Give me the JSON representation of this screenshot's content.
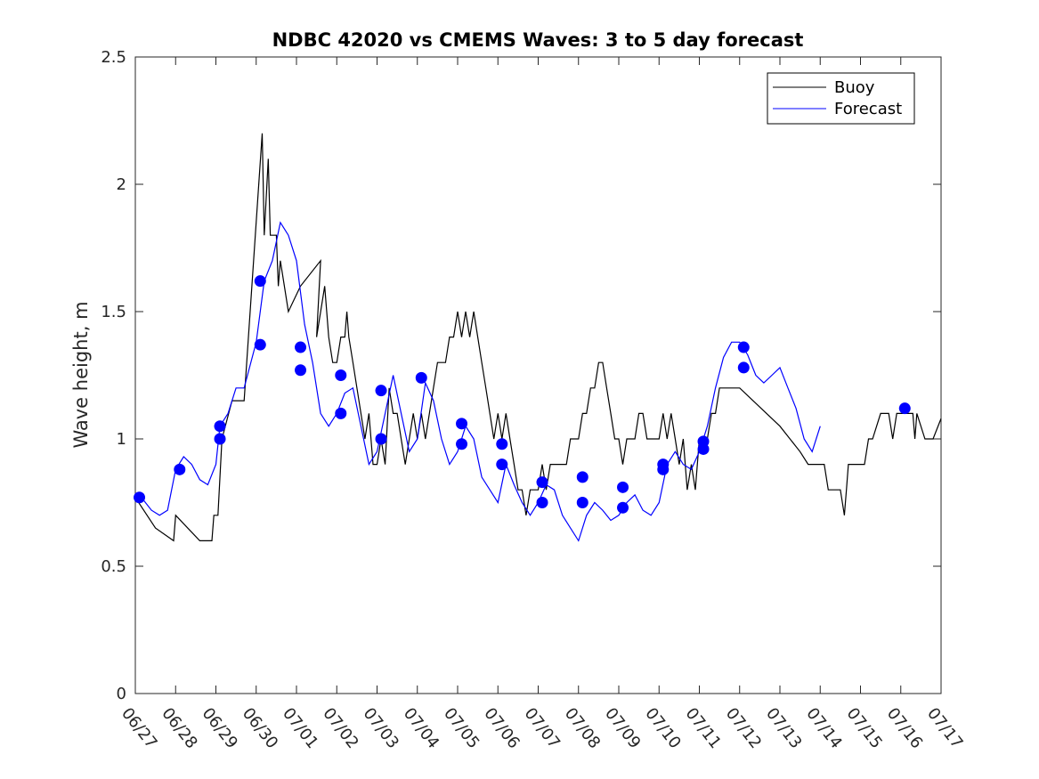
{
  "chart_data": {
    "type": "line",
    "title": "NDBC 42020 vs CMEMS Waves: 3 to 5 day forecast",
    "ylabel": "Wave height, m",
    "xlabel": "",
    "xlim": [
      0,
      20
    ],
    "ylim": [
      0,
      2.5
    ],
    "grid": false,
    "legend_position": "top-right",
    "yticks": [
      0,
      0.5,
      1,
      1.5,
      2,
      2.5
    ],
    "ytick_labels": [
      "0",
      "0.5",
      "1",
      "1.5",
      "2",
      "2.5"
    ],
    "xticks": [
      0,
      1,
      2,
      3,
      4,
      5,
      6,
      7,
      8,
      9,
      10,
      11,
      12,
      13,
      14,
      15,
      16,
      17,
      18,
      19,
      20
    ],
    "xtick_labels": [
      "06/27",
      "06/28",
      "06/29",
      "06/30",
      "07/01",
      "07/02",
      "07/03",
      "07/04",
      "07/05",
      "07/06",
      "07/07",
      "07/08",
      "07/09",
      "07/10",
      "07/11",
      "07/12",
      "07/13",
      "07/14",
      "07/15",
      "07/16",
      "07/17"
    ],
    "colors": {
      "buoy": "#000000",
      "forecast": "#0000ff"
    },
    "legend": [
      {
        "label": "Buoy",
        "color": "#000000"
      },
      {
        "label": "Forecast",
        "color": "#0000ff"
      }
    ],
    "series": [
      {
        "name": "Buoy",
        "color": "#000000",
        "points": [
          [
            0.0,
            0.77
          ],
          [
            0.5,
            0.65
          ],
          [
            0.95,
            0.6
          ],
          [
            1.0,
            0.7
          ],
          [
            1.6,
            0.6
          ],
          [
            1.9,
            0.6
          ],
          [
            1.95,
            0.7
          ],
          [
            2.05,
            0.7
          ],
          [
            2.15,
            1.0
          ],
          [
            2.4,
            1.15
          ],
          [
            2.7,
            1.15
          ],
          [
            3.15,
            2.2
          ],
          [
            3.2,
            1.8
          ],
          [
            3.3,
            2.1
          ],
          [
            3.35,
            1.8
          ],
          [
            3.5,
            1.8
          ],
          [
            3.55,
            1.6
          ],
          [
            3.6,
            1.7
          ],
          [
            3.7,
            1.6
          ],
          [
            3.8,
            1.5
          ],
          [
            4.1,
            1.6
          ],
          [
            4.6,
            1.7
          ],
          [
            4.5,
            1.4
          ],
          [
            4.7,
            1.6
          ],
          [
            4.8,
            1.4
          ],
          [
            4.9,
            1.3
          ],
          [
            5.0,
            1.3
          ],
          [
            5.1,
            1.4
          ],
          [
            5.2,
            1.4
          ],
          [
            5.25,
            1.5
          ],
          [
            5.3,
            1.4
          ],
          [
            5.4,
            1.3
          ],
          [
            5.5,
            1.2
          ],
          [
            5.6,
            1.1
          ],
          [
            5.7,
            1.0
          ],
          [
            5.8,
            1.1
          ],
          [
            5.9,
            0.9
          ],
          [
            6.0,
            0.9
          ],
          [
            6.1,
            1.0
          ],
          [
            6.2,
            0.9
          ],
          [
            6.3,
            1.2
          ],
          [
            6.4,
            1.1
          ],
          [
            6.5,
            1.1
          ],
          [
            6.6,
            1.0
          ],
          [
            6.7,
            0.9
          ],
          [
            6.8,
            1.0
          ],
          [
            6.9,
            1.1
          ],
          [
            7.0,
            1.0
          ],
          [
            7.1,
            1.1
          ],
          [
            7.2,
            1.0
          ],
          [
            7.3,
            1.1
          ],
          [
            7.5,
            1.3
          ],
          [
            7.7,
            1.3
          ],
          [
            7.8,
            1.4
          ],
          [
            7.9,
            1.4
          ],
          [
            8.0,
            1.5
          ],
          [
            8.1,
            1.4
          ],
          [
            8.2,
            1.5
          ],
          [
            8.3,
            1.4
          ],
          [
            8.4,
            1.5
          ],
          [
            8.5,
            1.4
          ],
          [
            8.6,
            1.3
          ],
          [
            8.7,
            1.2
          ],
          [
            8.8,
            1.1
          ],
          [
            8.9,
            1.0
          ],
          [
            9.0,
            1.1
          ],
          [
            9.1,
            1.0
          ],
          [
            9.2,
            1.1
          ],
          [
            9.3,
            1.0
          ],
          [
            9.4,
            0.9
          ],
          [
            9.5,
            0.8
          ],
          [
            9.6,
            0.8
          ],
          [
            9.7,
            0.7
          ],
          [
            9.8,
            0.8
          ],
          [
            9.9,
            0.8
          ],
          [
            10.0,
            0.8
          ],
          [
            10.1,
            0.9
          ],
          [
            10.2,
            0.8
          ],
          [
            10.3,
            0.9
          ],
          [
            10.5,
            0.9
          ],
          [
            10.7,
            0.9
          ],
          [
            10.8,
            1.0
          ],
          [
            10.9,
            1.0
          ],
          [
            11.0,
            1.0
          ],
          [
            11.1,
            1.1
          ],
          [
            11.2,
            1.1
          ],
          [
            11.3,
            1.2
          ],
          [
            11.4,
            1.2
          ],
          [
            11.5,
            1.3
          ],
          [
            11.6,
            1.3
          ],
          [
            11.7,
            1.2
          ],
          [
            11.8,
            1.1
          ],
          [
            11.9,
            1.0
          ],
          [
            12.0,
            1.0
          ],
          [
            12.1,
            0.9
          ],
          [
            12.2,
            1.0
          ],
          [
            12.3,
            1.0
          ],
          [
            12.4,
            1.0
          ],
          [
            12.5,
            1.1
          ],
          [
            12.6,
            1.1
          ],
          [
            12.7,
            1.0
          ],
          [
            12.8,
            1.0
          ],
          [
            12.9,
            1.0
          ],
          [
            13.0,
            1.0
          ],
          [
            13.1,
            1.1
          ],
          [
            13.2,
            1.0
          ],
          [
            13.3,
            1.1
          ],
          [
            13.4,
            1.0
          ],
          [
            13.5,
            0.9
          ],
          [
            13.6,
            1.0
          ],
          [
            13.7,
            0.8
          ],
          [
            13.8,
            0.9
          ],
          [
            13.9,
            0.8
          ],
          [
            14.0,
            1.0
          ],
          [
            14.1,
            1.0
          ],
          [
            14.2,
            1.0
          ],
          [
            14.3,
            1.1
          ],
          [
            14.4,
            1.1
          ],
          [
            14.5,
            1.2
          ],
          [
            15.0,
            1.2
          ],
          [
            16.0,
            1.05
          ],
          [
            16.5,
            0.95
          ],
          [
            16.7,
            0.9
          ],
          [
            17.1,
            0.9
          ],
          [
            17.2,
            0.8
          ],
          [
            17.5,
            0.8
          ],
          [
            17.6,
            0.7
          ],
          [
            17.65,
            0.8
          ],
          [
            17.7,
            0.9
          ],
          [
            18.1,
            0.9
          ],
          [
            18.2,
            1.0
          ],
          [
            18.3,
            1.0
          ],
          [
            18.5,
            1.1
          ],
          [
            18.7,
            1.1
          ],
          [
            18.8,
            1.0
          ],
          [
            18.9,
            1.1
          ],
          [
            19.1,
            1.1
          ],
          [
            19.3,
            1.1
          ],
          [
            19.35,
            1.0
          ],
          [
            19.4,
            1.1
          ],
          [
            19.6,
            1.0
          ],
          [
            19.8,
            1.0
          ],
          [
            20.0,
            1.08
          ]
        ]
      },
      {
        "name": "Forecast",
        "color": "#0000ff",
        "points": [
          [
            0.0,
            0.77
          ],
          [
            0.2,
            0.76
          ],
          [
            0.4,
            0.72
          ],
          [
            0.6,
            0.7
          ],
          [
            0.8,
            0.72
          ],
          [
            1.0,
            0.88
          ],
          [
            1.2,
            0.93
          ],
          [
            1.4,
            0.9
          ],
          [
            1.6,
            0.84
          ],
          [
            1.8,
            0.82
          ],
          [
            2.0,
            0.9
          ],
          [
            2.1,
            1.05
          ],
          [
            2.3,
            1.1
          ],
          [
            2.5,
            1.2
          ],
          [
            2.7,
            1.2
          ],
          [
            3.0,
            1.38
          ],
          [
            3.2,
            1.62
          ],
          [
            3.4,
            1.7
          ],
          [
            3.6,
            1.85
          ],
          [
            3.8,
            1.8
          ],
          [
            4.0,
            1.7
          ],
          [
            4.2,
            1.45
          ],
          [
            4.4,
            1.3
          ],
          [
            4.6,
            1.1
          ],
          [
            4.8,
            1.05
          ],
          [
            5.0,
            1.1
          ],
          [
            5.2,
            1.18
          ],
          [
            5.4,
            1.2
          ],
          [
            5.6,
            1.05
          ],
          [
            5.8,
            0.9
          ],
          [
            6.0,
            0.95
          ],
          [
            6.2,
            1.1
          ],
          [
            6.4,
            1.25
          ],
          [
            6.6,
            1.1
          ],
          [
            6.8,
            0.95
          ],
          [
            7.0,
            1.0
          ],
          [
            7.2,
            1.22
          ],
          [
            7.4,
            1.15
          ],
          [
            7.6,
            1.0
          ],
          [
            7.8,
            0.9
          ],
          [
            8.0,
            0.95
          ],
          [
            8.2,
            1.05
          ],
          [
            8.4,
            1.0
          ],
          [
            8.6,
            0.85
          ],
          [
            8.8,
            0.8
          ],
          [
            9.0,
            0.75
          ],
          [
            9.2,
            0.9
          ],
          [
            9.4,
            0.82
          ],
          [
            9.6,
            0.75
          ],
          [
            9.8,
            0.7
          ],
          [
            10.0,
            0.75
          ],
          [
            10.2,
            0.82
          ],
          [
            10.4,
            0.8
          ],
          [
            10.6,
            0.7
          ],
          [
            10.8,
            0.65
          ],
          [
            11.0,
            0.6
          ],
          [
            11.2,
            0.7
          ],
          [
            11.4,
            0.75
          ],
          [
            11.6,
            0.72
          ],
          [
            11.8,
            0.68
          ],
          [
            12.0,
            0.7
          ],
          [
            12.2,
            0.75
          ],
          [
            12.4,
            0.78
          ],
          [
            12.6,
            0.72
          ],
          [
            12.8,
            0.7
          ],
          [
            13.0,
            0.75
          ],
          [
            13.2,
            0.9
          ],
          [
            13.4,
            0.95
          ],
          [
            13.6,
            0.9
          ],
          [
            13.8,
            0.88
          ],
          [
            14.0,
            0.95
          ],
          [
            14.2,
            1.05
          ],
          [
            14.4,
            1.2
          ],
          [
            14.6,
            1.32
          ],
          [
            14.8,
            1.38
          ],
          [
            15.0,
            1.38
          ],
          [
            15.2,
            1.33
          ],
          [
            15.4,
            1.25
          ],
          [
            15.6,
            1.22
          ],
          [
            15.8,
            1.25
          ],
          [
            16.0,
            1.28
          ],
          [
            16.2,
            1.2
          ],
          [
            16.4,
            1.12
          ],
          [
            16.6,
            1.0
          ],
          [
            16.8,
            0.95
          ],
          [
            17.0,
            1.05
          ]
        ],
        "markers": [
          [
            0.1,
            0.77
          ],
          [
            1.1,
            0.88
          ],
          [
            2.1,
            1.05
          ],
          [
            2.1,
            1.0
          ],
          [
            3.1,
            1.62
          ],
          [
            3.1,
            1.37
          ],
          [
            4.1,
            1.36
          ],
          [
            4.1,
            1.27
          ],
          [
            5.1,
            1.25
          ],
          [
            5.1,
            1.1
          ],
          [
            6.1,
            1.19
          ],
          [
            6.1,
            1.0
          ],
          [
            7.1,
            1.24
          ],
          [
            8.1,
            1.06
          ],
          [
            8.1,
            0.98
          ],
          [
            9.1,
            0.98
          ],
          [
            9.1,
            0.9
          ],
          [
            10.1,
            0.83
          ],
          [
            10.1,
            0.75
          ],
          [
            11.1,
            0.85
          ],
          [
            11.1,
            0.75
          ],
          [
            12.1,
            0.81
          ],
          [
            12.1,
            0.73
          ],
          [
            13.1,
            0.9
          ],
          [
            13.1,
            0.88
          ],
          [
            14.1,
            0.99
          ],
          [
            14.1,
            0.96
          ],
          [
            15.1,
            1.36
          ],
          [
            15.1,
            1.28
          ],
          [
            19.1,
            1.12
          ]
        ]
      }
    ]
  }
}
